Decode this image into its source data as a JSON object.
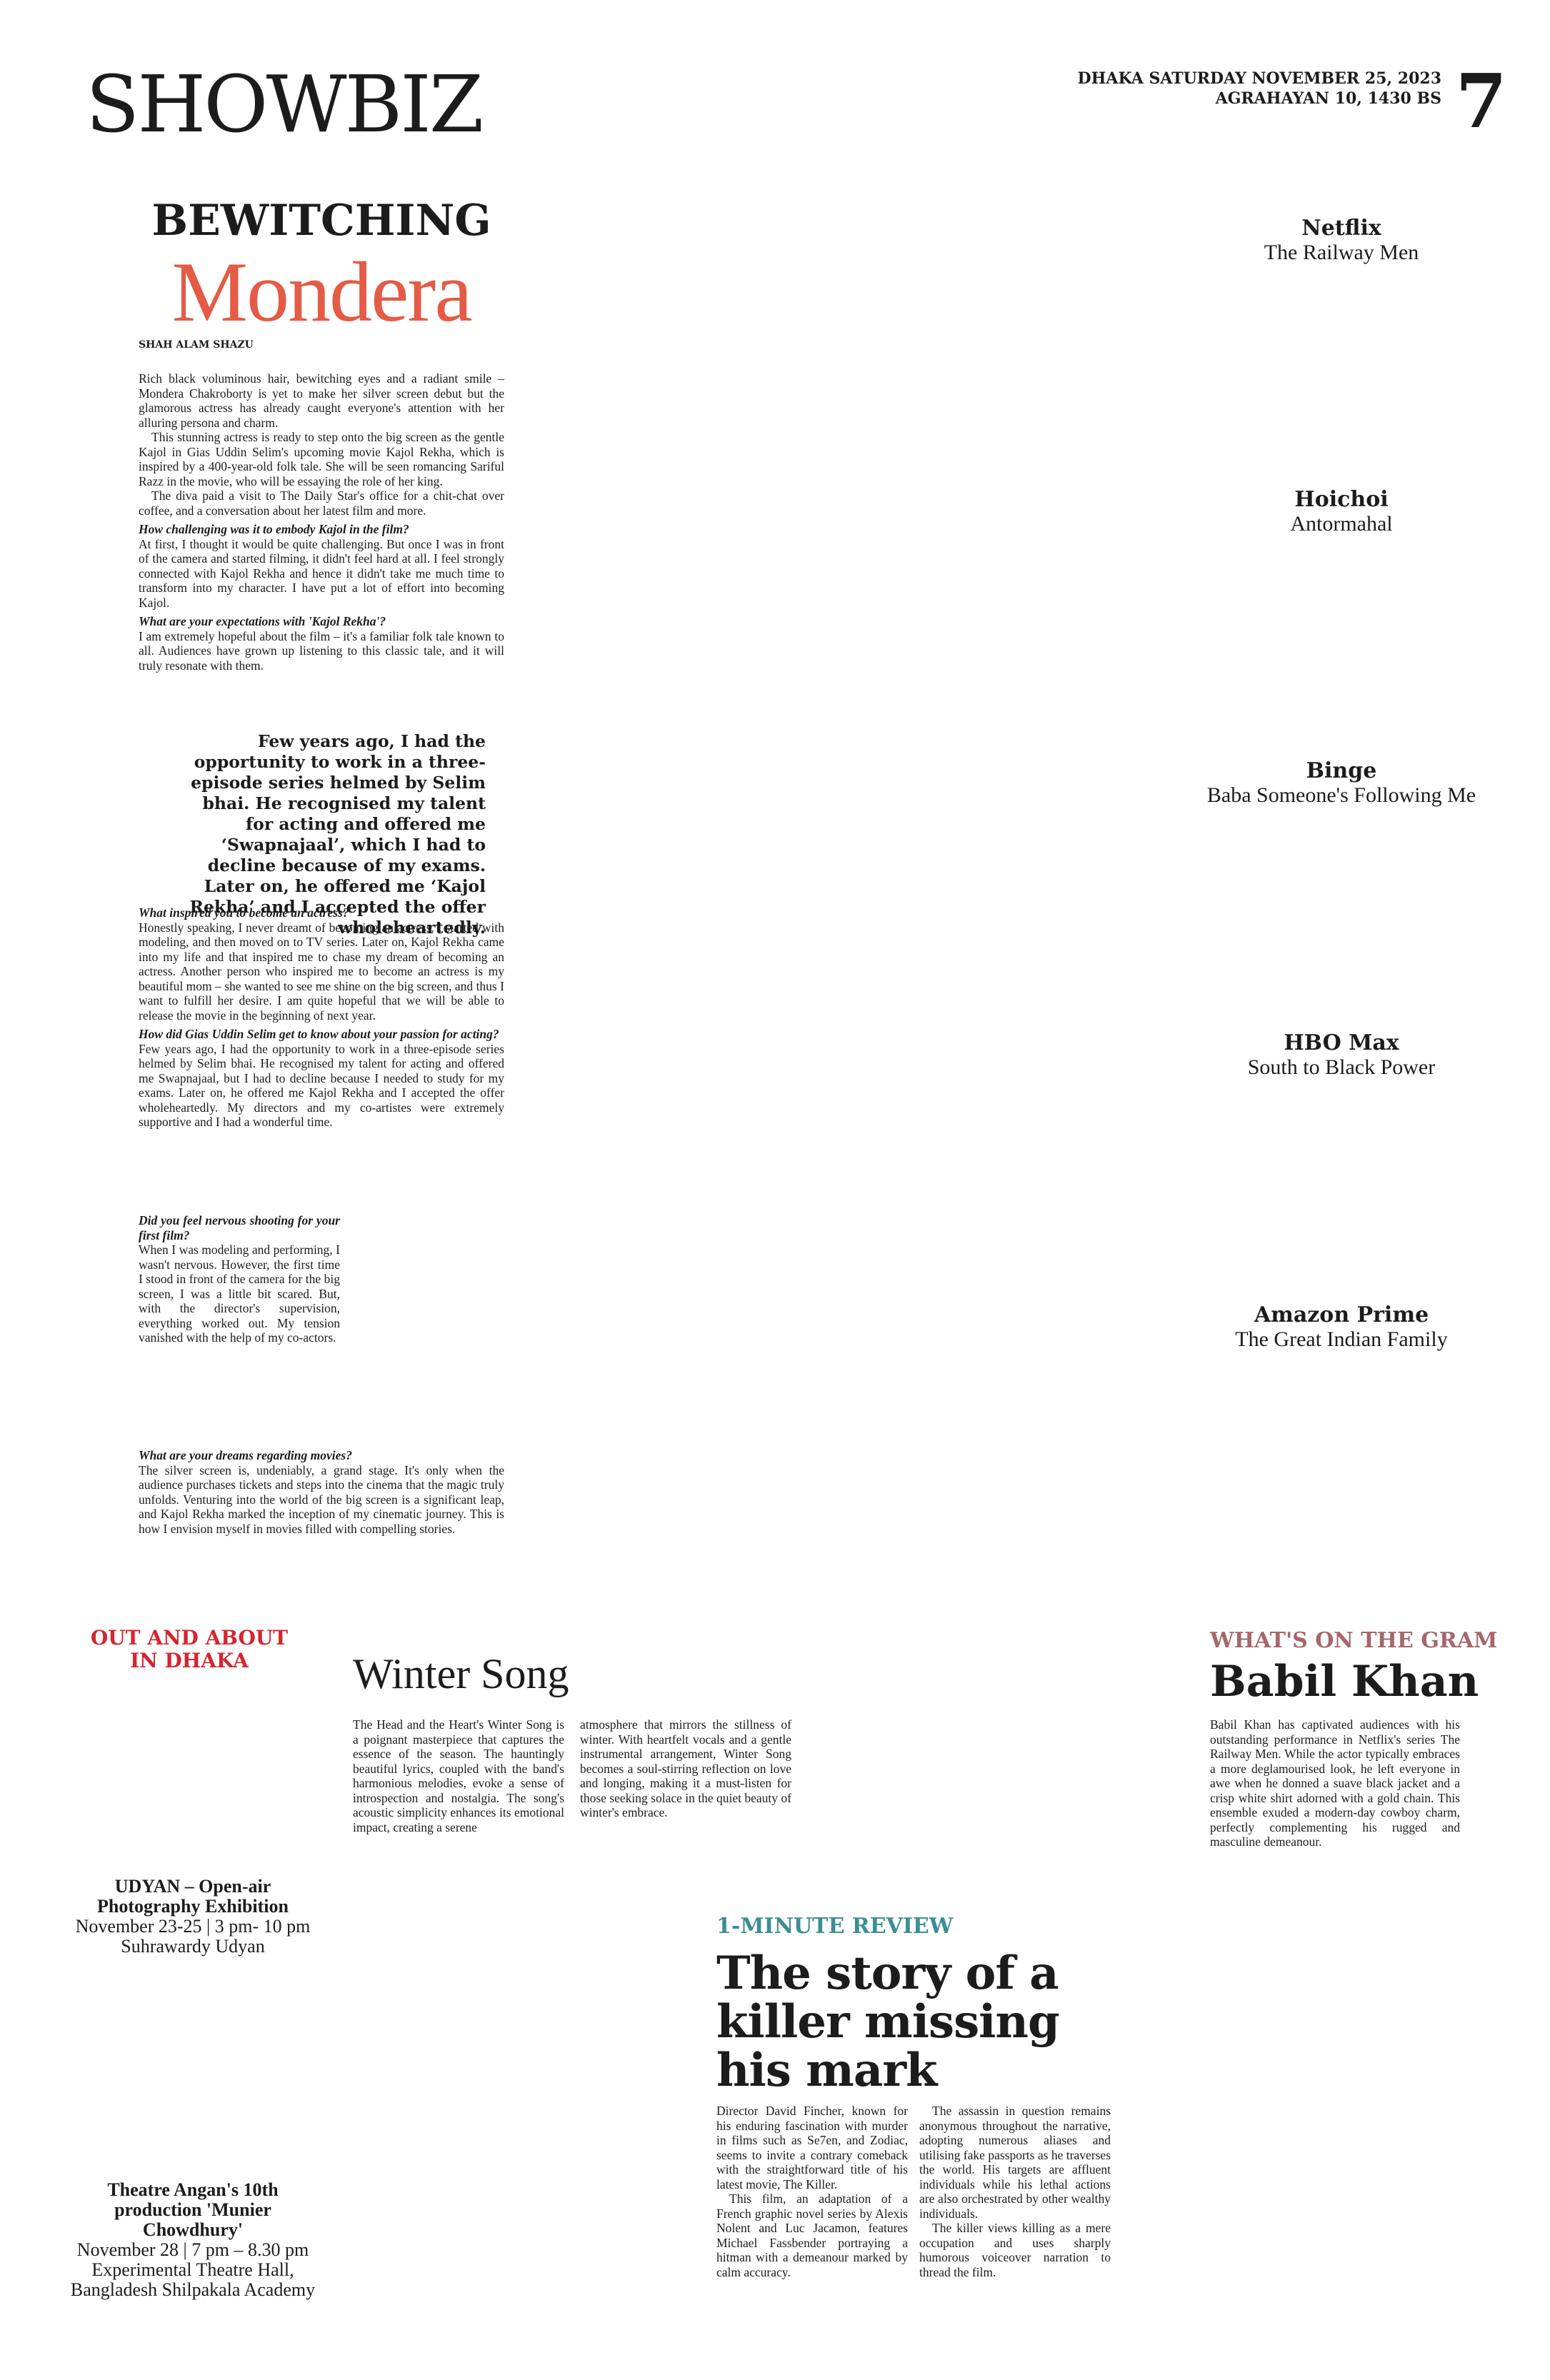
{
  "masthead": {
    "section": "SHOWBIZ",
    "date_line1": "DHAKA SATURDAY NOVEMBER 25, 2023",
    "date_line2": "AGRAHAYAN 10, 1430 BS",
    "page": "7"
  },
  "feature": {
    "kicker": "BEWITCHING",
    "title": "Mondera",
    "byline": "SHAH ALAM SHAZU",
    "intro": [
      "Rich black voluminous hair, bewitching eyes and a radiant smile – Mondera Chakroborty is yet to make her silver screen debut but the glamorous actress has already caught everyone's attention with her alluring persona and charm.",
      "This stunning actress is ready to step onto the big screen as the gentle Kajol in Gias Uddin Selim's upcoming movie Kajol Rekha, which is inspired by a 400-year-old folk tale. She will be seen romancing Sariful Razz in the movie, who will be essaying the role of her king.",
      "The diva paid a visit to The Daily Star's office for a chit-chat over coffee, and a conversation about her latest film and more."
    ],
    "qa1": [
      {
        "q": "How challenging was it to embody Kajol in the film?",
        "a": "At first, I thought it would be quite challenging. But once I was in front of the camera and started filming, it didn't feel hard at all. I feel strongly connected with Kajol Rekha and hence it didn't take me much time to transform into my character. I have put a lot of effort into becoming Kajol."
      },
      {
        "q": "What are your expectations with 'Kajol Rekha'?",
        "a": "I am extremely hopeful about the film – it's a familiar folk tale known to all. Audiences have grown up listening to this classic tale, and it will truly resonate with them."
      }
    ],
    "pull_quote": "Few years ago, I had the opportunity to work in a three-episode series helmed by Selim bhai. He recognised my talent for acting and offered me ‘Swapnajaal’, which I had to decline because of my exams. Later on, he offered me ‘Kajol Rekha’ and I accepted the offer wholeheartedly.",
    "qa2": [
      {
        "q": "What inspired you to become an actress?",
        "a": "Honestly speaking, I never dreamt of becoming an actress. I started with modeling, and then moved on to TV series. Later on, Kajol Rekha came into my life and that inspired me to chase my dream of becoming an actress. Another person who inspired me to become an actress is my beautiful mom – she wanted to see me shine on the big screen, and thus I want to fulfill her desire. I am quite hopeful that we will be able to release the movie in the beginning of next year."
      },
      {
        "q": "How did Gias Uddin Selim get to know about your passion for acting?",
        "a": "Few years ago, I had the opportunity to work in a three-episode series helmed by Selim bhai. He recognised my talent for acting and offered me Swapnajaal, but I had to decline because I needed to study for my exams. Later on, he offered me Kajol Rekha and I accepted the offer wholeheartedly. My directors and my co-artistes were extremely supportive and I had a wonderful time."
      },
      {
        "q": "Did you feel nervous shooting for your first film?",
        "a": "When I was modeling and performing, I wasn't nervous. However, the first time I stood in front of the camera for the big screen, I was a little bit scared. But, with the director's supervision, everything worked out. My tension vanished with the help of my co-actors."
      },
      {
        "q": "What are your dreams regarding movies?",
        "a": "The silver screen is, undeniably, a grand stage. It's only when the audience purchases tickets and steps into the cinema that the magic truly unfolds. Venturing into the world of the big screen is a significant leap, and Kajol Rekha marked the inception of my cinematic journey. This is how I envision myself in movies filled with compelling stories."
      }
    ]
  },
  "streaming": [
    {
      "platform": "Netflix",
      "show": "The Railway Men"
    },
    {
      "platform": "Hoichoi",
      "show": "Antormahal"
    },
    {
      "platform": "Binge",
      "show": "Baba Someone's Following Me"
    },
    {
      "platform": "HBO Max",
      "show": "South to Black Power"
    },
    {
      "platform": "Amazon Prime",
      "show": "The Great Indian Family"
    }
  ],
  "out_about": {
    "heading_line1": "OUT AND ABOUT",
    "heading_line2": "IN DHAKA",
    "events": [
      {
        "title_line1": "UDYAN – Open-air",
        "title_line2": "Photography Exhibition",
        "when": "November 23-25 | 3 pm- 10 pm",
        "where_line1": "Suhrawardy Udyan",
        "where_line2": ""
      },
      {
        "title_line1": "Theatre Angan's 10th",
        "title_line2": "production 'Munier",
        "title_line3": "Chowdhury'",
        "when": "November 28 | 7 pm – 8.30 pm",
        "where_line1": "Experimental Theatre Hall,",
        "where_line2": "Bangladesh Shilpakala Academy"
      }
    ]
  },
  "winter_song": {
    "title": "Winter Song",
    "col1": "The Head and the Heart's Winter Song is a poignant masterpiece that captures the essence of the season. The hauntingly beautiful lyrics, coupled with the band's harmonious melodies, evoke a sense of introspection and nostalgia. The song's acoustic simplicity enhances its emotional impact, creating a serene",
    "col2": "atmosphere that mirrors the stillness of winter. With heartfelt vocals and a gentle instrumental arrangement, Winter Song becomes a soul-stirring reflection on love and longing, making it a must-listen for those seeking solace in the quiet beauty of winter's embrace."
  },
  "review": {
    "kicker": "1-MINUTE REVIEW",
    "head_line1": "The story of a",
    "head_line2": "killer missing",
    "head_line3": "his mark",
    "col1a": "Director David Fincher, known for his enduring fascination with murder in films such as Se7en, and Zodiac, seems to invite a contrary comeback with the straightforward title of his latest movie, The Killer.",
    "col1b": "This film, an adaptation of a French graphic novel series by Alexis Nolent and Luc Jacamon, features Michael Fassbender portraying a hitman with a demeanour marked by calm accuracy.",
    "col2a": "The assassin in question remains anonymous throughout the narrative, adopting numerous aliases and utilising fake passports as he traverses the world. His targets are affluent individuals while his lethal actions are also orchestrated by other wealthy individuals.",
    "col2b": "The killer views killing as a mere occupation and uses sharply humorous voiceover narration to thread the film."
  },
  "gram": {
    "kicker": "WHAT'S ON THE GRAM",
    "title": "Babil Khan",
    "text": "Babil Khan has captivated audiences with his outstanding performance in Netflix's series The Railway Men. While the actor typically embraces a more deglamourised look, he left everyone in awe when he donned a suave black jacket and a crisp white shirt adorned with a gold chain. This ensemble exuded a modern-day cowboy charm, perfectly complementing his rugged and masculine demeanour."
  }
}
